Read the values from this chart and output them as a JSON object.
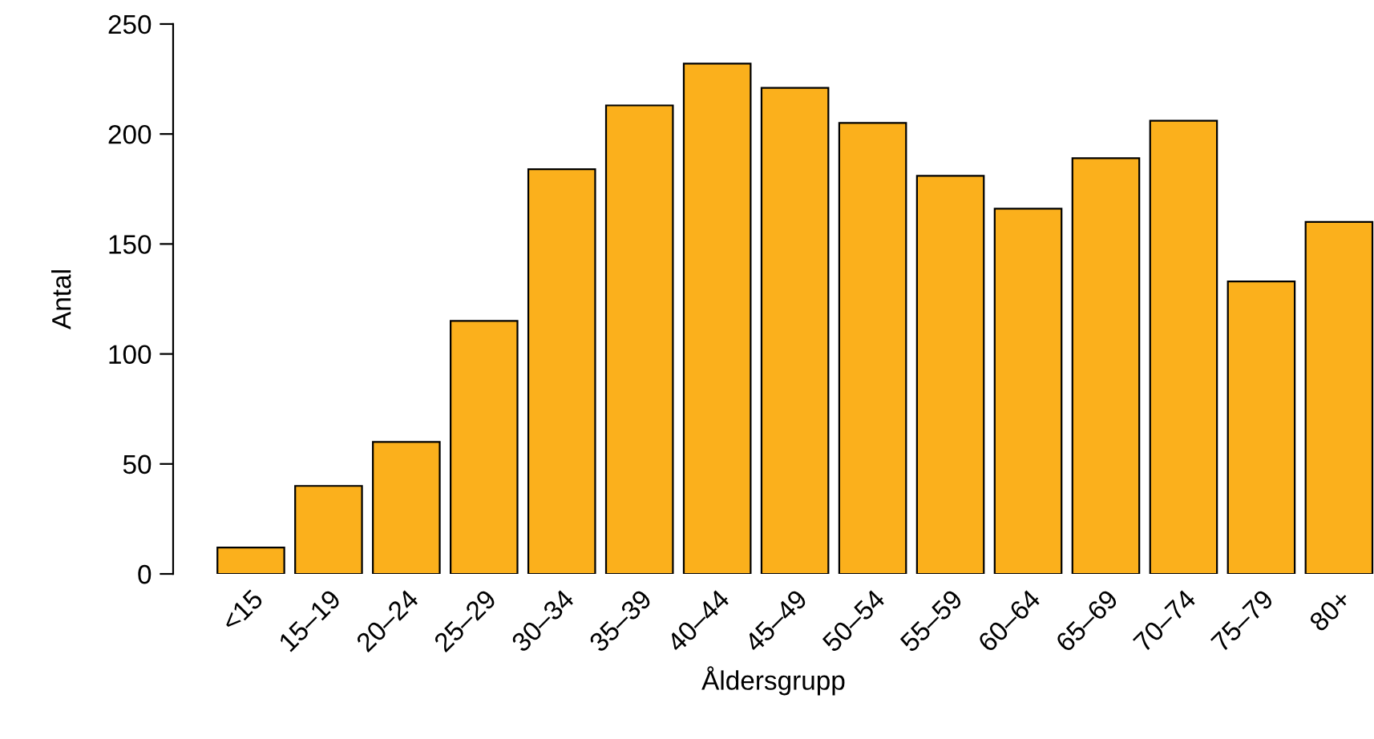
{
  "chart_data": {
    "type": "bar",
    "xlabel": "Åldersgrupp",
    "ylabel": "Antal",
    "categories": [
      "<15",
      "15–19",
      "20–24",
      "25–29",
      "30–34",
      "35–39",
      "40–44",
      "45–49",
      "50–54",
      "55–59",
      "60–64",
      "65–69",
      "70–74",
      "75–79",
      "80+"
    ],
    "values": [
      12,
      40,
      60,
      115,
      184,
      213,
      232,
      221,
      205,
      181,
      166,
      189,
      206,
      133,
      160
    ],
    "color": "#fbb01c",
    "ylim": [
      0,
      250
    ],
    "yticks": [
      0,
      50,
      100,
      150,
      200,
      250
    ],
    "grid": false,
    "legend": false
  }
}
